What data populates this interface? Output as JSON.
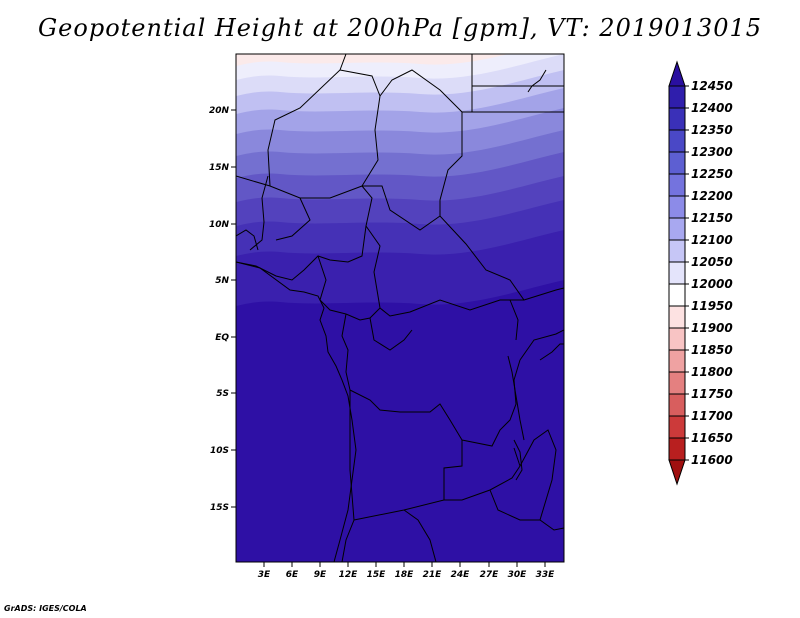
{
  "title": "Geopotential Height at 200hPa [gpm], VT: 2019013015",
  "credit": "GrADS: IGES/COLA",
  "lat_labels": [
    "20N",
    "15N",
    "10N",
    "5N",
    "EQ",
    "5S",
    "10S",
    "15S"
  ],
  "lon_labels": [
    "3E",
    "6E",
    "9E",
    "12E",
    "15E",
    "18E",
    "21E",
    "24E",
    "27E",
    "30E",
    "33E"
  ],
  "colorbar": {
    "levels": [
      "12450",
      "12400",
      "12350",
      "12300",
      "12250",
      "12200",
      "12150",
      "12100",
      "12050",
      "12000",
      "11950",
      "11900",
      "11850",
      "11800",
      "11750",
      "11700",
      "11650",
      "11600"
    ],
    "colors": [
      "#2a0fa0",
      "#2f1eac",
      "#3a30b8",
      "#4a48c6",
      "#5d5fd2",
      "#7473de",
      "#8c8be8",
      "#a8a8f0",
      "#c6c6f6",
      "#e4e4fb",
      "#ffffff",
      "#fde2e2",
      "#f8c4c4",
      "#efa2a2",
      "#e48080",
      "#d85e5e",
      "#cc3a3a",
      "#b81f1f",
      "#a01010"
    ]
  },
  "colors": {
    "dominant_field": "#2e10a5",
    "coastline": "#000000"
  }
}
